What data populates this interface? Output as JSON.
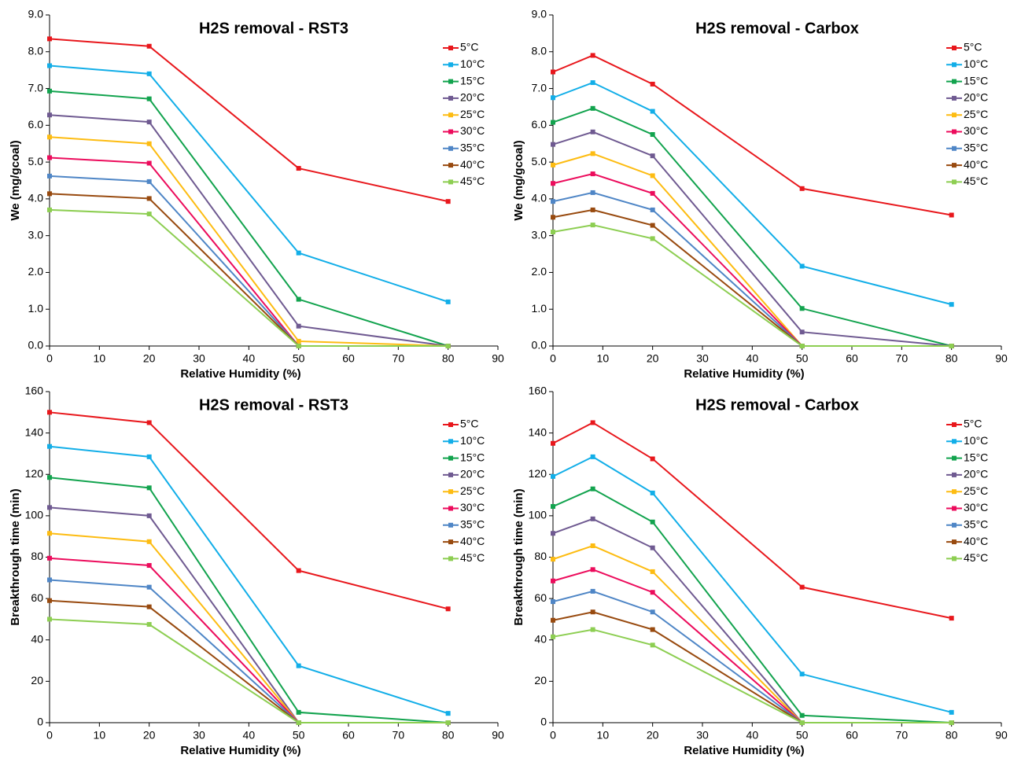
{
  "chart_data": [
    {
      "type": "line",
      "title": "H2S removal - RST3",
      "x_label": "Relative Humidity (%)",
      "y_label": "We (mg/gcoal)",
      "x": [
        0,
        20,
        50,
        80
      ],
      "xlim": [
        0,
        90
      ],
      "xticks": [
        0,
        10,
        20,
        30,
        40,
        50,
        60,
        70,
        80,
        90
      ],
      "ylim": [
        0,
        9
      ],
      "yticks": [
        {
          "value": 0,
          "label": "0.0"
        },
        {
          "value": 1,
          "label": "1.0"
        },
        {
          "value": 2,
          "label": "2.0"
        },
        {
          "value": 3,
          "label": "3.0"
        },
        {
          "value": 4,
          "label": "4.0"
        },
        {
          "value": 5,
          "label": "5.0"
        },
        {
          "value": 6,
          "label": "6.0"
        },
        {
          "value": 7,
          "label": "7.0"
        },
        {
          "value": 8,
          "label": "8.0"
        },
        {
          "value": 9,
          "label": "9.0"
        }
      ],
      "series": [
        {
          "name": "5°C",
          "color": "#e8171c",
          "values": [
            8.35,
            8.15,
            4.83,
            3.93
          ]
        },
        {
          "name": "10°C",
          "color": "#12aee8",
          "values": [
            7.62,
            7.4,
            2.53,
            1.2
          ]
        },
        {
          "name": "15°C",
          "color": "#12a34e",
          "values": [
            6.93,
            6.72,
            1.27,
            0
          ]
        },
        {
          "name": "20°C",
          "color": "#6f5a91",
          "values": [
            6.28,
            6.09,
            0.54,
            0
          ]
        },
        {
          "name": "25°C",
          "color": "#fdbc12",
          "values": [
            5.68,
            5.5,
            0.13,
            0
          ]
        },
        {
          "name": "30°C",
          "color": "#ec0c5c",
          "values": [
            5.12,
            4.97,
            0,
            0
          ]
        },
        {
          "name": "35°C",
          "color": "#4f86c6",
          "values": [
            4.62,
            4.47,
            0,
            0
          ]
        },
        {
          "name": "40°C",
          "color": "#984a0f",
          "values": [
            4.14,
            4.01,
            0,
            0
          ]
        },
        {
          "name": "45°C",
          "color": "#8dce52",
          "values": [
            3.7,
            3.59,
            0,
            0
          ]
        }
      ]
    },
    {
      "type": "line",
      "title": "H2S removal - Carbox",
      "x_label": "Relative Humidity (%)",
      "y_label": "We (mg/gcoal)",
      "x": [
        0,
        8,
        20,
        50,
        80
      ],
      "xlim": [
        0,
        90
      ],
      "xticks": [
        0,
        10,
        20,
        30,
        40,
        50,
        60,
        70,
        80,
        90
      ],
      "ylim": [
        0,
        9
      ],
      "yticks": [
        {
          "value": 0,
          "label": "0.0"
        },
        {
          "value": 1,
          "label": "1.0"
        },
        {
          "value": 2,
          "label": "2.0"
        },
        {
          "value": 3,
          "label": "3.0"
        },
        {
          "value": 4,
          "label": "4.0"
        },
        {
          "value": 5,
          "label": "5.0"
        },
        {
          "value": 6,
          "label": "6.0"
        },
        {
          "value": 7,
          "label": "7.0"
        },
        {
          "value": 8,
          "label": "8.0"
        },
        {
          "value": 9,
          "label": "9.0"
        }
      ],
      "series": [
        {
          "name": "5°C",
          "color": "#e8171c",
          "values": [
            7.45,
            7.9,
            7.12,
            4.28,
            3.56
          ]
        },
        {
          "name": "10°C",
          "color": "#12aee8",
          "values": [
            6.75,
            7.16,
            6.38,
            2.17,
            1.13
          ]
        },
        {
          "name": "15°C",
          "color": "#12a34e",
          "values": [
            6.08,
            6.46,
            5.75,
            1.02,
            0
          ]
        },
        {
          "name": "20°C",
          "color": "#6f5a91",
          "values": [
            5.48,
            5.82,
            5.17,
            0.38,
            0
          ]
        },
        {
          "name": "25°C",
          "color": "#fdbc12",
          "values": [
            4.92,
            5.23,
            4.63,
            0,
            0
          ]
        },
        {
          "name": "30°C",
          "color": "#ec0c5c",
          "values": [
            4.42,
            4.68,
            4.15,
            0,
            0
          ]
        },
        {
          "name": "35°C",
          "color": "#4f86c6",
          "values": [
            3.93,
            4.17,
            3.7,
            0,
            0
          ]
        },
        {
          "name": "40°C",
          "color": "#984a0f",
          "values": [
            3.5,
            3.7,
            3.28,
            0,
            0
          ]
        },
        {
          "name": "45°C",
          "color": "#8dce52",
          "values": [
            3.1,
            3.29,
            2.92,
            0,
            0
          ]
        }
      ]
    },
    {
      "type": "line",
      "title": "H2S removal - RST3",
      "x_label": "Relative Humidity (%)",
      "y_label": "Breakthrough time (min)",
      "x": [
        0,
        20,
        50,
        80
      ],
      "xlim": [
        0,
        90
      ],
      "xticks": [
        0,
        10,
        20,
        30,
        40,
        50,
        60,
        70,
        80,
        90
      ],
      "ylim": [
        0,
        160
      ],
      "yticks": [
        0,
        20,
        40,
        60,
        80,
        100,
        120,
        140,
        160
      ],
      "series": [
        {
          "name": "5°C",
          "color": "#e8171c",
          "values": [
            150,
            145,
            73.5,
            55
          ]
        },
        {
          "name": "10°C",
          "color": "#12aee8",
          "values": [
            133.5,
            128.5,
            27.5,
            4.5
          ]
        },
        {
          "name": "15°C",
          "color": "#12a34e",
          "values": [
            118.5,
            113.5,
            5,
            0
          ]
        },
        {
          "name": "20°C",
          "color": "#6f5a91",
          "values": [
            104,
            100,
            0,
            0
          ]
        },
        {
          "name": "25°C",
          "color": "#fdbc12",
          "values": [
            91.5,
            87.5,
            0,
            0
          ]
        },
        {
          "name": "30°C",
          "color": "#ec0c5c",
          "values": [
            79.5,
            76,
            0,
            0
          ]
        },
        {
          "name": "35°C",
          "color": "#4f86c6",
          "values": [
            69,
            65.5,
            0,
            0
          ]
        },
        {
          "name": "40°C",
          "color": "#984a0f",
          "values": [
            59,
            56,
            0,
            0
          ]
        },
        {
          "name": "45°C",
          "color": "#8dce52",
          "values": [
            50,
            47.5,
            0,
            0
          ]
        }
      ]
    },
    {
      "type": "line",
      "title": "H2S removal - Carbox",
      "x_label": "Relative Humidity (%)",
      "y_label": "Breakthrough time (min)",
      "x": [
        0,
        8,
        20,
        50,
        80
      ],
      "xlim": [
        0,
        90
      ],
      "xticks": [
        0,
        10,
        20,
        30,
        40,
        50,
        60,
        70,
        80,
        90
      ],
      "ylim": [
        0,
        160
      ],
      "yticks": [
        0,
        20,
        40,
        60,
        80,
        100,
        120,
        140,
        160
      ],
      "series": [
        {
          "name": "5°C",
          "color": "#e8171c",
          "values": [
            135,
            145,
            127.5,
            65.5,
            50.5
          ]
        },
        {
          "name": "10°C",
          "color": "#12aee8",
          "values": [
            119,
            128.5,
            111,
            23.5,
            5
          ]
        },
        {
          "name": "15°C",
          "color": "#12a34e",
          "values": [
            104.5,
            113,
            97,
            3.5,
            0
          ]
        },
        {
          "name": "20°C",
          "color": "#6f5a91",
          "values": [
            91.5,
            98.5,
            84.5,
            0,
            0
          ]
        },
        {
          "name": "25°C",
          "color": "#fdbc12",
          "values": [
            79,
            85.5,
            73,
            0,
            0
          ]
        },
        {
          "name": "30°C",
          "color": "#ec0c5c",
          "values": [
            68.5,
            74,
            63,
            0,
            0
          ]
        },
        {
          "name": "35°C",
          "color": "#4f86c6",
          "values": [
            58.5,
            63.5,
            53.5,
            0,
            0
          ]
        },
        {
          "name": "40°C",
          "color": "#984a0f",
          "values": [
            49.5,
            53.5,
            45,
            0,
            0
          ]
        },
        {
          "name": "45°C",
          "color": "#8dce52",
          "values": [
            41.5,
            45,
            37.5,
            0,
            0
          ]
        }
      ]
    }
  ]
}
